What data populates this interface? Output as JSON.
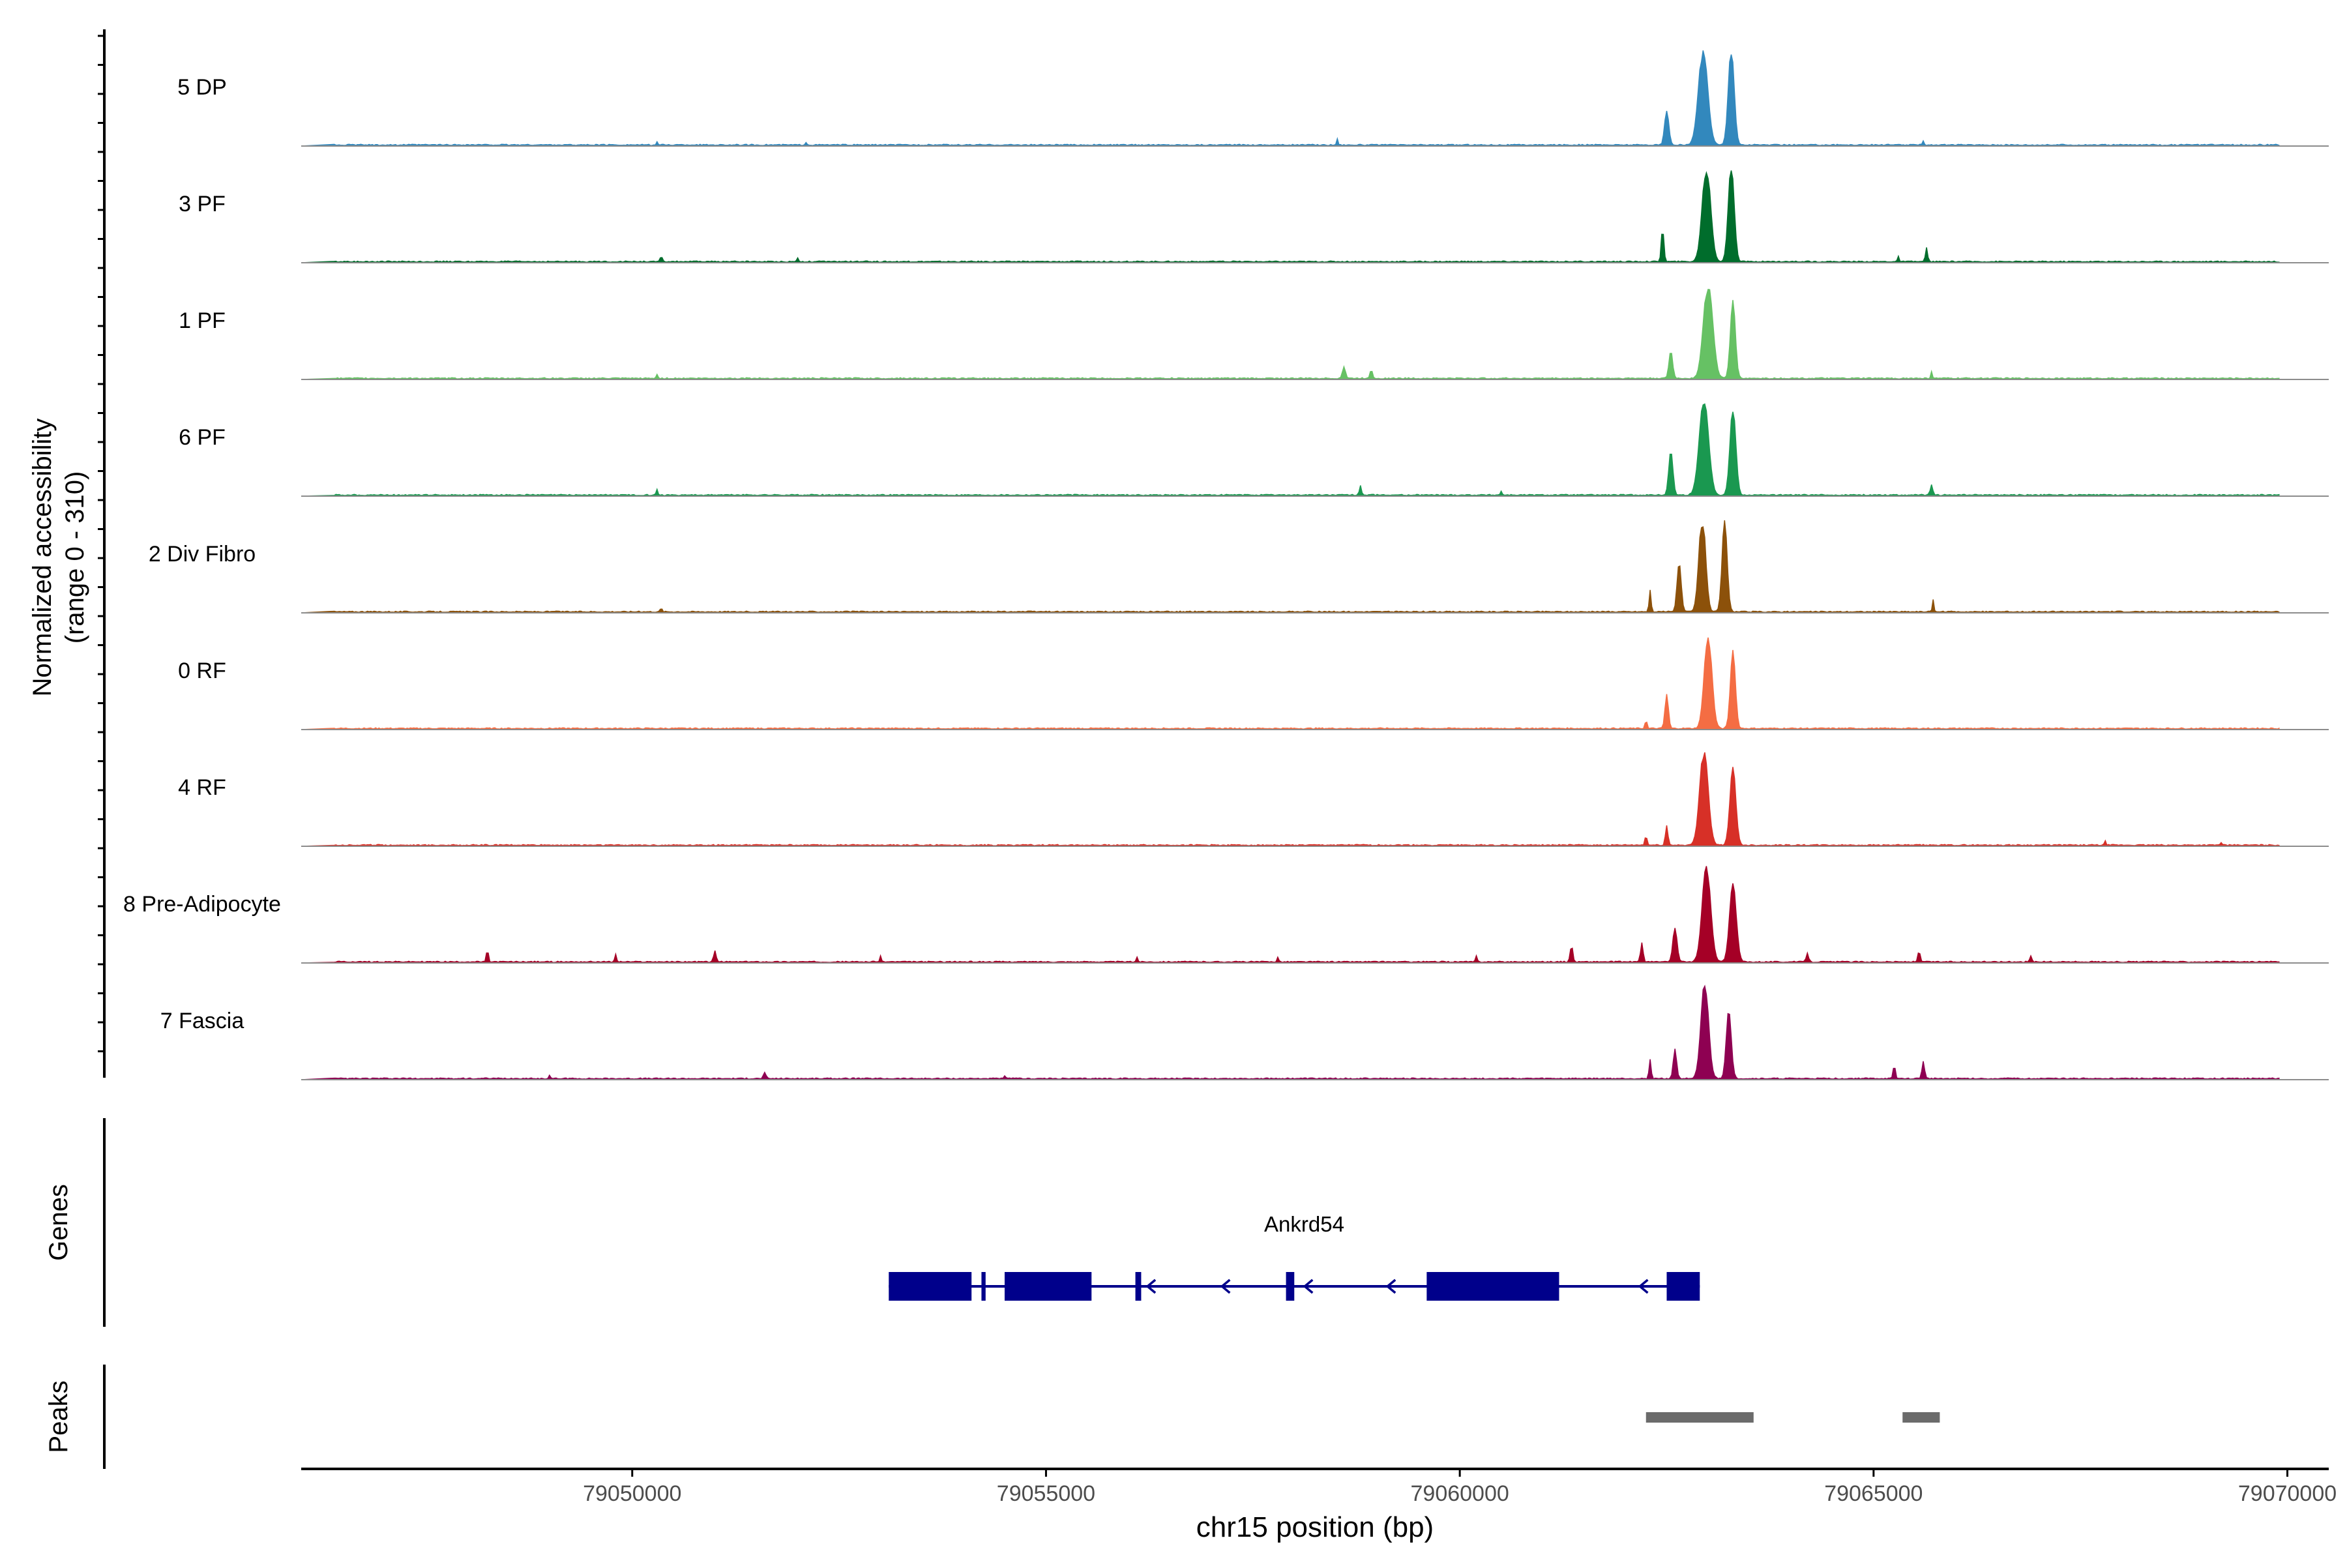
{
  "chart_data": {
    "type": "area",
    "title": "",
    "ylabel_line1": "Normalized accessibility",
    "ylabel_line2": "(range 0 - 310)",
    "xlabel": "chr15 position (bp)",
    "xlim": [
      79046000,
      79070500
    ],
    "ylim": [
      0,
      310
    ],
    "x_ticks": [
      79050000,
      79055000,
      79060000,
      79065000,
      79070000
    ],
    "x_tick_labels": [
      "79050000",
      "79055000",
      "79060000",
      "79065000",
      "79070000"
    ],
    "tracks": [
      {
        "name": "5 DP",
        "color": "#3288BD",
        "peaks": [
          [
            79062940,
            55,
            1.0
          ],
          [
            79063280,
            35,
            1.0
          ],
          [
            79062500,
            25,
            0.35
          ],
          [
            79058520,
            10,
            0.06
          ],
          [
            79065600,
            12,
            0.04
          ],
          [
            79050300,
            10,
            0.03
          ],
          [
            79052100,
            10,
            0.03
          ]
        ]
      },
      {
        "name": "3 PF",
        "color": "#006D2C",
        "peaks": [
          [
            79062980,
            50,
            1.0
          ],
          [
            79063280,
            35,
            1.0
          ],
          [
            79062450,
            15,
            0.35
          ],
          [
            79065640,
            12,
            0.15
          ],
          [
            79065300,
            10,
            0.05
          ],
          [
            79050350,
            10,
            0.06
          ],
          [
            79052000,
            10,
            0.04
          ]
        ]
      },
      {
        "name": "1 PF",
        "color": "#66C164",
        "peaks": [
          [
            79063000,
            55,
            1.0
          ],
          [
            79063300,
            30,
            0.8
          ],
          [
            79062550,
            22,
            0.28
          ],
          [
            79058600,
            18,
            0.12
          ],
          [
            79058930,
            15,
            0.09
          ],
          [
            79065700,
            10,
            0.07
          ],
          [
            79050300,
            10,
            0.04
          ]
        ]
      },
      {
        "name": "6 PF",
        "color": "#1A9850",
        "peaks": [
          [
            79062950,
            55,
            1.0
          ],
          [
            79063300,
            35,
            0.9
          ],
          [
            79062550,
            25,
            0.45
          ],
          [
            79058800,
            12,
            0.1
          ],
          [
            79065700,
            15,
            0.1
          ],
          [
            79050300,
            10,
            0.06
          ],
          [
            79060500,
            10,
            0.04
          ]
        ]
      },
      {
        "name": "2 Div Fibro",
        "color": "#8C510A",
        "peaks": [
          [
            79062930,
            40,
            1.0
          ],
          [
            79063200,
            30,
            0.95
          ],
          [
            79062650,
            25,
            0.5
          ],
          [
            79062300,
            12,
            0.22
          ],
          [
            79065720,
            10,
            0.12
          ],
          [
            79050350,
            10,
            0.04
          ]
        ]
      },
      {
        "name": "0 RF",
        "color": "#F46D43",
        "peaks": [
          [
            79063000,
            45,
            1.0
          ],
          [
            79063300,
            30,
            0.8
          ],
          [
            79062500,
            20,
            0.35
          ],
          [
            79062250,
            10,
            0.1
          ]
        ]
      },
      {
        "name": "4 RF",
        "color": "#D73027",
        "peaks": [
          [
            79062950,
            50,
            1.0
          ],
          [
            79063300,
            35,
            0.8
          ],
          [
            79062500,
            15,
            0.2
          ],
          [
            79062250,
            10,
            0.12
          ],
          [
            79067800,
            10,
            0.04
          ],
          [
            79069200,
            10,
            0.03
          ]
        ]
      },
      {
        "name": "8 Pre-Adipocyte",
        "color": "#A50026",
        "peaks": [
          [
            79062980,
            50,
            1.0
          ],
          [
            79063300,
            40,
            0.8
          ],
          [
            79062600,
            25,
            0.35
          ],
          [
            79062200,
            15,
            0.2
          ],
          [
            79061350,
            15,
            0.17
          ],
          [
            79065550,
            12,
            0.12
          ],
          [
            79048250,
            12,
            0.12
          ],
          [
            79051000,
            15,
            0.11
          ],
          [
            79064200,
            15,
            0.09
          ],
          [
            79049800,
            10,
            0.08
          ],
          [
            79053000,
            10,
            0.06
          ],
          [
            79060200,
            10,
            0.06
          ],
          [
            79066900,
            12,
            0.06
          ],
          [
            79056100,
            10,
            0.05
          ],
          [
            79057800,
            10,
            0.05
          ]
        ]
      },
      {
        "name": "7 Fascia",
        "color": "#8E0152",
        "peaks": [
          [
            79062960,
            45,
            1.0
          ],
          [
            79063250,
            30,
            0.7
          ],
          [
            79062600,
            20,
            0.3
          ],
          [
            79062300,
            12,
            0.2
          ],
          [
            79065600,
            15,
            0.18
          ],
          [
            79065250,
            12,
            0.14
          ],
          [
            79051600,
            15,
            0.06
          ],
          [
            79049000,
            10,
            0.03
          ],
          [
            79054500,
            10,
            0.03
          ]
        ]
      }
    ],
    "genes": [
      {
        "name": "Ankrd54",
        "color": "#00008B",
        "start": 79053100,
        "end": 79062900,
        "strand": "-",
        "exons": [
          [
            79053100,
            79054100
          ],
          [
            79054220,
            79054270
          ],
          [
            79054500,
            79055550
          ],
          [
            79056080,
            79056150
          ],
          [
            79057900,
            79058000
          ],
          [
            79059600,
            79061200
          ],
          [
            79062500,
            79062900
          ]
        ],
        "arrows": [
          79054000,
          79056250,
          79057150,
          79058150,
          79059150,
          79062200
        ]
      }
    ],
    "peak_regions": [
      [
        79062250,
        79063550
      ],
      [
        79065350,
        79065800
      ]
    ],
    "panel_labels": {
      "genes": "Genes",
      "peaks": "Peaks"
    }
  }
}
